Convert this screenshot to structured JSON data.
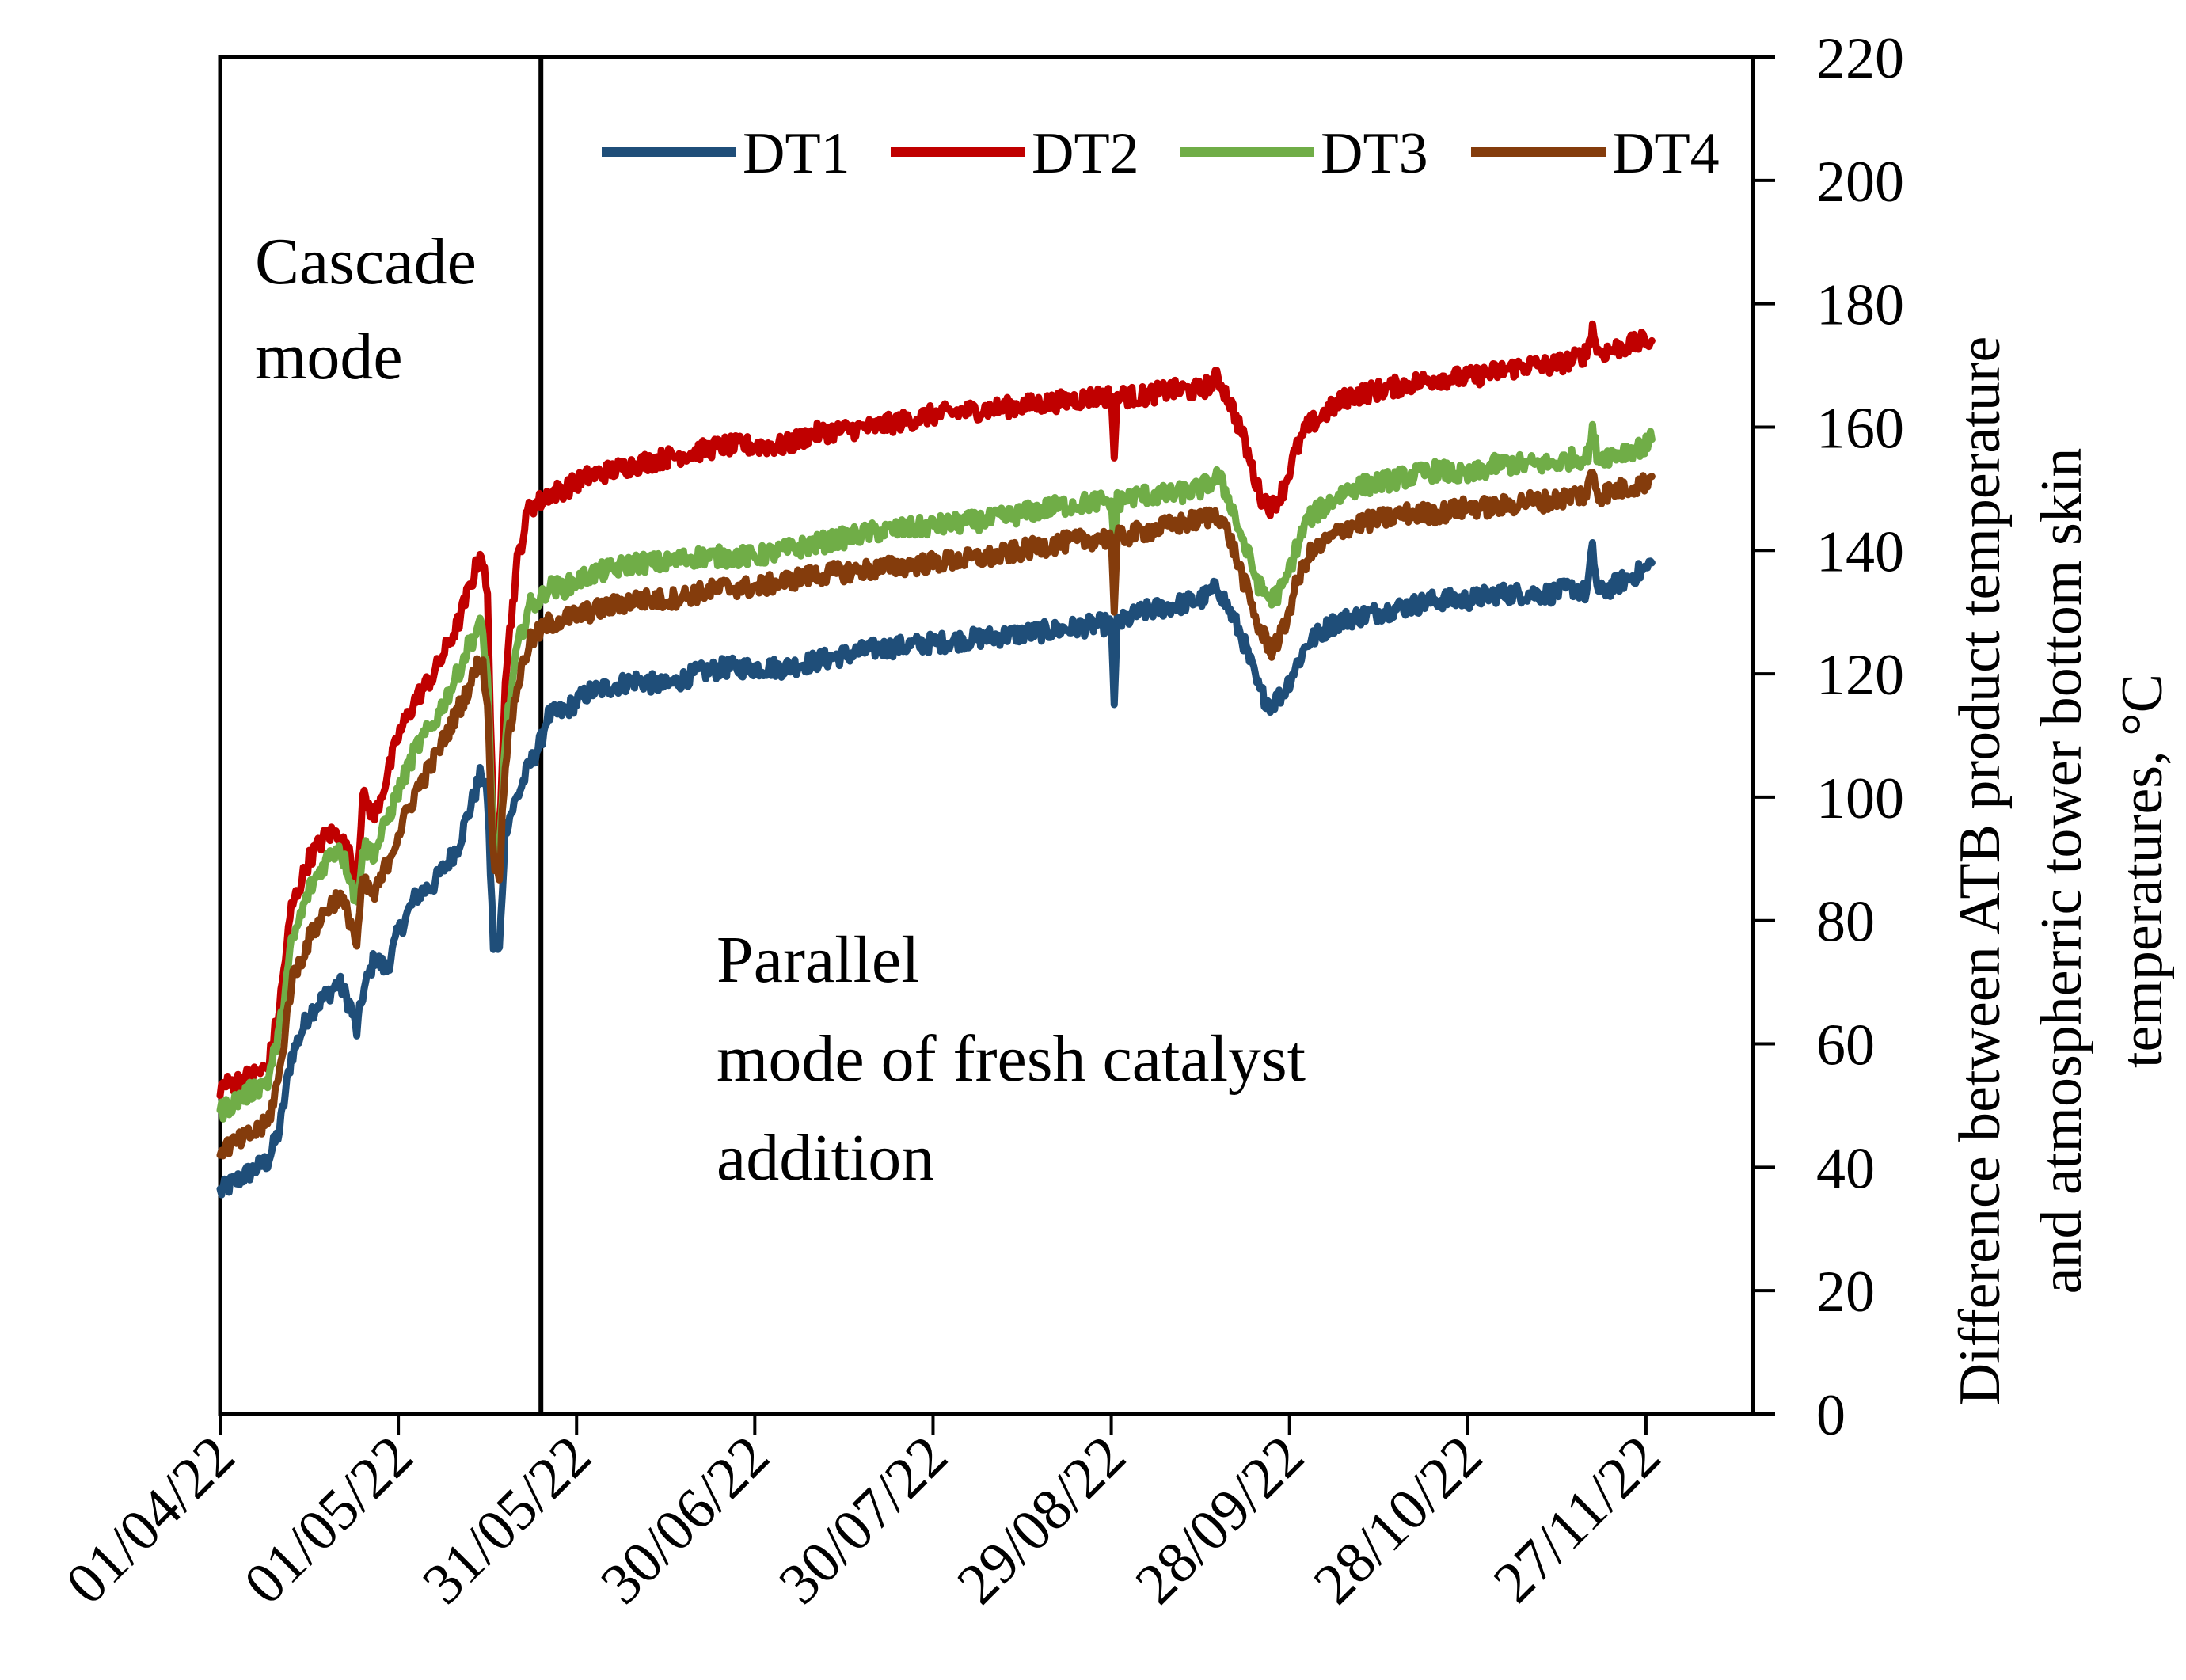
{
  "chart_data": {
    "type": "line",
    "title": "",
    "xlabel": "",
    "ylabel": [
      "Difference between ATB product temperature",
      "and atmospherric tower bottom skin",
      "temperatures, °C"
    ],
    "ylim": [
      0,
      220
    ],
    "yticks": [
      "0",
      "20",
      "40",
      "60",
      "80",
      "100",
      "120",
      "140",
      "160",
      "180",
      "200",
      "220"
    ],
    "x_tick_labels": [
      "01/04/22",
      "01/05/22",
      "31/05/22",
      "30/06/22",
      "30/07/22",
      "29/08/22",
      "28/09/22",
      "28/10/22",
      "27/11/22"
    ],
    "x_day_range": [
      0,
      258
    ],
    "x_tick_days": [
      0,
      30,
      60,
      90,
      120,
      150,
      180,
      210,
      240
    ],
    "mode_change_day": 54,
    "legend_position": "top-right",
    "annotations": {
      "cascade": [
        "Cascade",
        "mode"
      ],
      "parallel": [
        "Parallel",
        "mode of fresh catalyst",
        "addition"
      ]
    },
    "series": [
      {
        "name": "DT1",
        "color": "#1f4e79",
        "points": [
          [
            0,
            36
          ],
          [
            3,
            38
          ],
          [
            8,
            41
          ],
          [
            10,
            46
          ],
          [
            12,
            58
          ],
          [
            15,
            65
          ],
          [
            18,
            68
          ],
          [
            20,
            70
          ],
          [
            22,
            66
          ],
          [
            23,
            62
          ],
          [
            24,
            68
          ],
          [
            26,
            74
          ],
          [
            28,
            72
          ],
          [
            30,
            78
          ],
          [
            33,
            84
          ],
          [
            36,
            86
          ],
          [
            40,
            92
          ],
          [
            42,
            98
          ],
          [
            44,
            104
          ],
          [
            45,
            100
          ],
          [
            46,
            76
          ],
          [
            47,
            75
          ],
          [
            48,
            95
          ],
          [
            50,
            100
          ],
          [
            52,
            105
          ],
          [
            54,
            109
          ],
          [
            55,
            113
          ],
          [
            58,
            114
          ],
          [
            62,
            117
          ],
          [
            66,
            118
          ],
          [
            70,
            119
          ],
          [
            75,
            118
          ],
          [
            80,
            120
          ],
          [
            85,
            121
          ],
          [
            90,
            121
          ],
          [
            95,
            121
          ],
          [
            100,
            122
          ],
          [
            110,
            124
          ],
          [
            120,
            125
          ],
          [
            130,
            126
          ],
          [
            140,
            127
          ],
          [
            148,
            128
          ],
          [
            150,
            128
          ],
          [
            150.5,
            115
          ],
          [
            151,
            128
          ],
          [
            155,
            130
          ],
          [
            160,
            131
          ],
          [
            165,
            132
          ],
          [
            168,
            134
          ],
          [
            170,
            130
          ],
          [
            172,
            126
          ],
          [
            175,
            117
          ],
          [
            177,
            115
          ],
          [
            179,
            117
          ],
          [
            181,
            121
          ],
          [
            183,
            125
          ],
          [
            187,
            128
          ],
          [
            190,
            129
          ],
          [
            195,
            130
          ],
          [
            200,
            131
          ],
          [
            205,
            132
          ],
          [
            210,
            132
          ],
          [
            215,
            133
          ],
          [
            220,
            133
          ],
          [
            224,
            133
          ],
          [
            228,
            134
          ],
          [
            230,
            133
          ],
          [
            231,
            140
          ],
          [
            232,
            133
          ],
          [
            236,
            135
          ],
          [
            240,
            137
          ],
          [
            241,
            138
          ]
        ]
      },
      {
        "name": "DT2",
        "color": "#c00000",
        "points": [
          [
            0,
            53
          ],
          [
            3,
            54
          ],
          [
            8,
            56
          ],
          [
            10,
            66
          ],
          [
            12,
            82
          ],
          [
            15,
            90
          ],
          [
            18,
            94
          ],
          [
            20,
            94
          ],
          [
            22,
            90
          ],
          [
            23,
            86
          ],
          [
            24,
            100
          ],
          [
            26,
            97
          ],
          [
            28,
            103
          ],
          [
            30,
            110
          ],
          [
            33,
            116
          ],
          [
            36,
            120
          ],
          [
            40,
            128
          ],
          [
            42,
            134
          ],
          [
            44,
            140
          ],
          [
            45,
            132
          ],
          [
            46,
            96
          ],
          [
            47,
            94
          ],
          [
            48,
            120
          ],
          [
            50,
            138
          ],
          [
            52,
            147
          ],
          [
            54,
            148
          ],
          [
            55,
            149
          ],
          [
            58,
            150
          ],
          [
            62,
            152
          ],
          [
            66,
            153
          ],
          [
            70,
            154
          ],
          [
            75,
            155
          ],
          [
            80,
            156
          ],
          [
            85,
            157
          ],
          [
            90,
            157
          ],
          [
            95,
            157
          ],
          [
            100,
            159
          ],
          [
            110,
            160
          ],
          [
            120,
            162
          ],
          [
            130,
            163
          ],
          [
            140,
            164
          ],
          [
            148,
            165
          ],
          [
            150,
            165
          ],
          [
            150.5,
            155
          ],
          [
            151,
            165
          ],
          [
            155,
            165
          ],
          [
            160,
            166
          ],
          [
            165,
            166
          ],
          [
            168,
            168
          ],
          [
            170,
            164
          ],
          [
            172,
            159
          ],
          [
            175,
            149
          ],
          [
            177,
            147
          ],
          [
            179,
            150
          ],
          [
            181,
            156
          ],
          [
            183,
            160
          ],
          [
            187,
            163
          ],
          [
            190,
            165
          ],
          [
            195,
            166
          ],
          [
            200,
            167
          ],
          [
            205,
            168
          ],
          [
            210,
            168
          ],
          [
            215,
            169
          ],
          [
            220,
            170
          ],
          [
            224,
            170
          ],
          [
            228,
            171
          ],
          [
            230,
            172
          ],
          [
            231,
            176
          ],
          [
            232,
            172
          ],
          [
            236,
            173
          ],
          [
            240,
            174
          ],
          [
            241,
            174
          ]
        ]
      },
      {
        "name": "DT3",
        "color": "#70ad47",
        "points": [
          [
            0,
            49
          ],
          [
            3,
            51
          ],
          [
            8,
            54
          ],
          [
            10,
            62
          ],
          [
            12,
            76
          ],
          [
            15,
            85
          ],
          [
            18,
            90
          ],
          [
            20,
            92
          ],
          [
            22,
            87
          ],
          [
            23,
            82
          ],
          [
            24,
            92
          ],
          [
            26,
            91
          ],
          [
            28,
            96
          ],
          [
            30,
            101
          ],
          [
            33,
            108
          ],
          [
            36,
            112
          ],
          [
            40,
            120
          ],
          [
            42,
            125
          ],
          [
            44,
            128
          ],
          [
            45,
            120
          ],
          [
            46,
            92
          ],
          [
            47,
            90
          ],
          [
            48,
            110
          ],
          [
            50,
            124
          ],
          [
            52,
            131
          ],
          [
            54,
            132
          ],
          [
            55,
            134
          ],
          [
            58,
            134
          ],
          [
            62,
            136
          ],
          [
            66,
            137
          ],
          [
            70,
            138
          ],
          [
            75,
            138
          ],
          [
            80,
            139
          ],
          [
            85,
            139
          ],
          [
            90,
            139
          ],
          [
            95,
            140
          ],
          [
            100,
            141
          ],
          [
            110,
            143
          ],
          [
            120,
            144
          ],
          [
            130,
            145
          ],
          [
            140,
            147
          ],
          [
            148,
            148
          ],
          [
            150,
            148
          ],
          [
            150.5,
            140
          ],
          [
            151,
            148
          ],
          [
            155,
            149
          ],
          [
            160,
            149
          ],
          [
            165,
            150
          ],
          [
            168,
            152
          ],
          [
            170,
            148
          ],
          [
            172,
            142
          ],
          [
            175,
            134
          ],
          [
            177,
            132
          ],
          [
            179,
            134
          ],
          [
            181,
            140
          ],
          [
            183,
            145
          ],
          [
            187,
            148
          ],
          [
            190,
            150
          ],
          [
            195,
            151
          ],
          [
            200,
            152
          ],
          [
            205,
            153
          ],
          [
            210,
            152
          ],
          [
            215,
            154
          ],
          [
            220,
            154
          ],
          [
            224,
            154
          ],
          [
            228,
            155
          ],
          [
            230,
            155
          ],
          [
            231,
            159
          ],
          [
            232,
            155
          ],
          [
            236,
            156
          ],
          [
            240,
            157
          ],
          [
            241,
            158
          ]
        ]
      },
      {
        "name": "DT4",
        "color": "#843c0c",
        "points": [
          [
            0,
            43
          ],
          [
            3,
            44
          ],
          [
            8,
            47
          ],
          [
            10,
            55
          ],
          [
            12,
            70
          ],
          [
            15,
            77
          ],
          [
            18,
            82
          ],
          [
            20,
            84
          ],
          [
            22,
            80
          ],
          [
            23,
            76
          ],
          [
            24,
            86
          ],
          [
            26,
            84
          ],
          [
            28,
            89
          ],
          [
            30,
            94
          ],
          [
            33,
            101
          ],
          [
            36,
            106
          ],
          [
            40,
            114
          ],
          [
            42,
            118
          ],
          [
            44,
            123
          ],
          [
            45,
            115
          ],
          [
            46,
            90
          ],
          [
            47,
            88
          ],
          [
            48,
            106
          ],
          [
            50,
            118
          ],
          [
            52,
            125
          ],
          [
            54,
            127
          ],
          [
            55,
            128
          ],
          [
            58,
            129
          ],
          [
            62,
            130
          ],
          [
            66,
            131
          ],
          [
            70,
            132
          ],
          [
            75,
            132
          ],
          [
            80,
            133
          ],
          [
            85,
            134
          ],
          [
            90,
            134
          ],
          [
            95,
            135
          ],
          [
            100,
            136
          ],
          [
            110,
            137
          ],
          [
            120,
            138
          ],
          [
            130,
            139
          ],
          [
            140,
            141
          ],
          [
            148,
            142
          ],
          [
            150,
            142
          ],
          [
            150.5,
            130
          ],
          [
            151,
            142
          ],
          [
            155,
            143
          ],
          [
            160,
            144
          ],
          [
            165,
            145
          ],
          [
            168,
            146
          ],
          [
            170,
            142
          ],
          [
            172,
            136
          ],
          [
            175,
            127
          ],
          [
            177,
            124
          ],
          [
            179,
            127
          ],
          [
            181,
            134
          ],
          [
            183,
            139
          ],
          [
            187,
            142
          ],
          [
            190,
            144
          ],
          [
            195,
            145
          ],
          [
            200,
            146
          ],
          [
            205,
            146
          ],
          [
            210,
            147
          ],
          [
            215,
            147
          ],
          [
            220,
            148
          ],
          [
            224,
            148
          ],
          [
            228,
            149
          ],
          [
            230,
            149
          ],
          [
            231,
            153
          ],
          [
            232,
            149
          ],
          [
            236,
            150
          ],
          [
            240,
            151
          ],
          [
            241,
            152
          ]
        ]
      }
    ]
  }
}
